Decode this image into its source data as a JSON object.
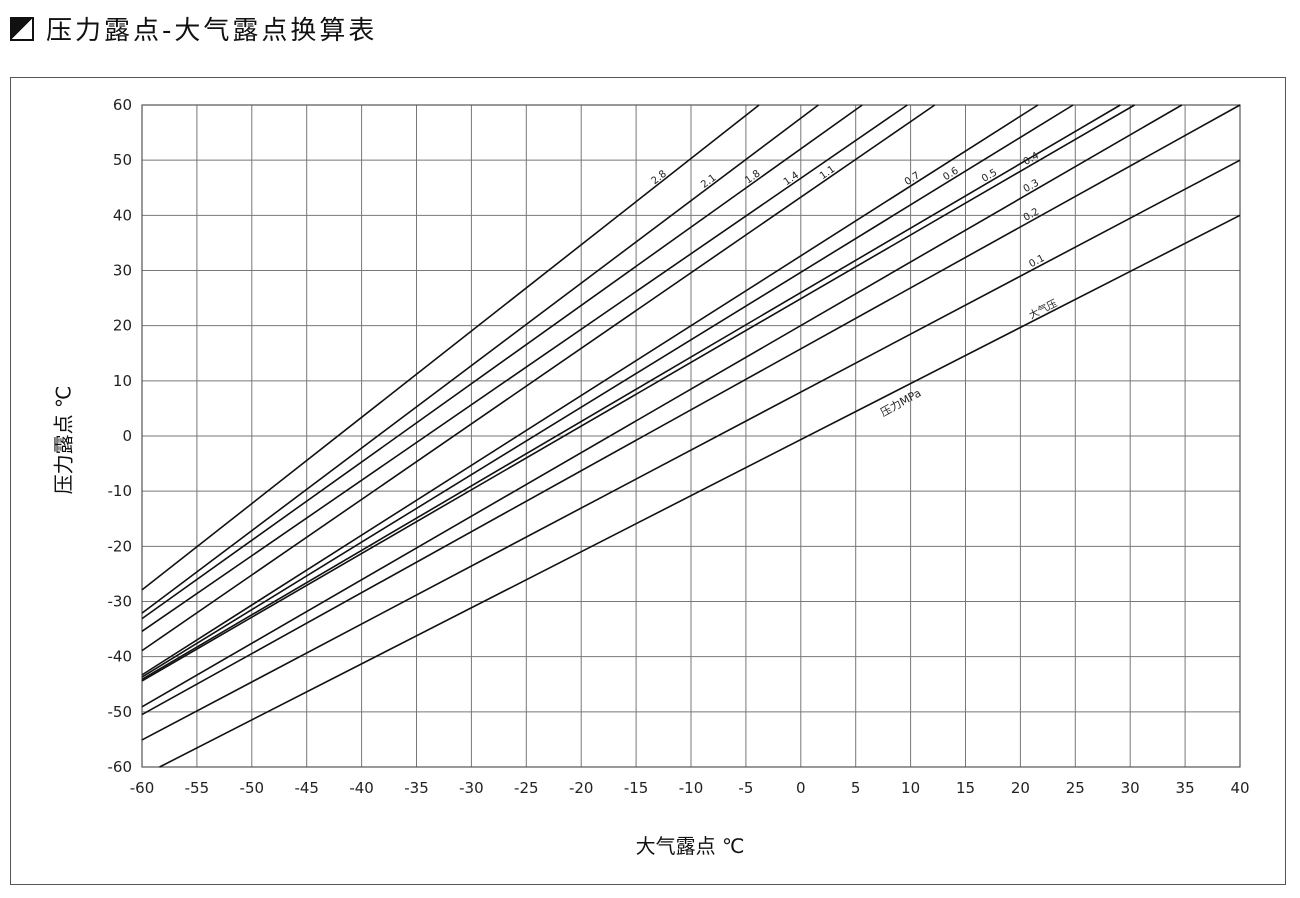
{
  "title": "压力露点-大气露点换算表",
  "title_icon": "half-filled-square-icon",
  "chart_data": {
    "type": "line",
    "title": "压力露点-大气露点换算表",
    "xlabel": "大气露点 ℃",
    "ylabel": "压力露点 ℃",
    "xlim": [
      -60,
      40
    ],
    "ylim": [
      -60,
      60
    ],
    "xticks": [
      -60,
      -55,
      -50,
      -45,
      -40,
      -35,
      -30,
      -25,
      -20,
      -15,
      -10,
      -5,
      0,
      5,
      10,
      15,
      20,
      25,
      30,
      35,
      40
    ],
    "yticks": [
      60,
      50,
      40,
      30,
      20,
      10,
      0,
      -10,
      -20,
      -30,
      -40,
      -50,
      -60
    ],
    "grid": true,
    "unit_label": "压力MPa",
    "series": [
      {
        "name": "2.8",
        "points": [
          [
            -60,
            -27.9
          ],
          [
            -3.8,
            60
          ]
        ]
      },
      {
        "name": "2.1",
        "points": [
          [
            -60,
            -32.1
          ],
          [
            1.6,
            60
          ]
        ]
      },
      {
        "name": "1.8",
        "points": [
          [
            -60,
            -33.1
          ],
          [
            5.6,
            60
          ]
        ]
      },
      {
        "name": "1.4",
        "points": [
          [
            -60,
            -35.4
          ],
          [
            9.7,
            60
          ]
        ]
      },
      {
        "name": "1.1",
        "points": [
          [
            -60,
            -38.9
          ],
          [
            12.2,
            60
          ]
        ]
      },
      {
        "name": "0.7",
        "points": [
          [
            -60,
            -43.3
          ],
          [
            21.6,
            60
          ]
        ]
      },
      {
        "name": "0.6",
        "points": [
          [
            -60,
            -43.7
          ],
          [
            24.8,
            60
          ]
        ]
      },
      {
        "name": "0.5",
        "points": [
          [
            -60,
            -44.1
          ],
          [
            29.1,
            60
          ]
        ]
      },
      {
        "name": "0.4",
        "points": [
          [
            -60,
            -44.4
          ],
          [
            30.4,
            60
          ]
        ]
      },
      {
        "name": "0.3",
        "points": [
          [
            -60,
            -49.1
          ],
          [
            34.7,
            60
          ]
        ]
      },
      {
        "name": "0.2",
        "points": [
          [
            -60,
            -50.5
          ],
          [
            40,
            60
          ]
        ]
      },
      {
        "name": "0.1",
        "points": [
          [
            -60,
            -55.1
          ],
          [
            40,
            50
          ]
        ]
      },
      {
        "name": "大气压",
        "points": [
          [
            -58.4,
            -60
          ],
          [
            40,
            40
          ]
        ]
      }
    ]
  }
}
